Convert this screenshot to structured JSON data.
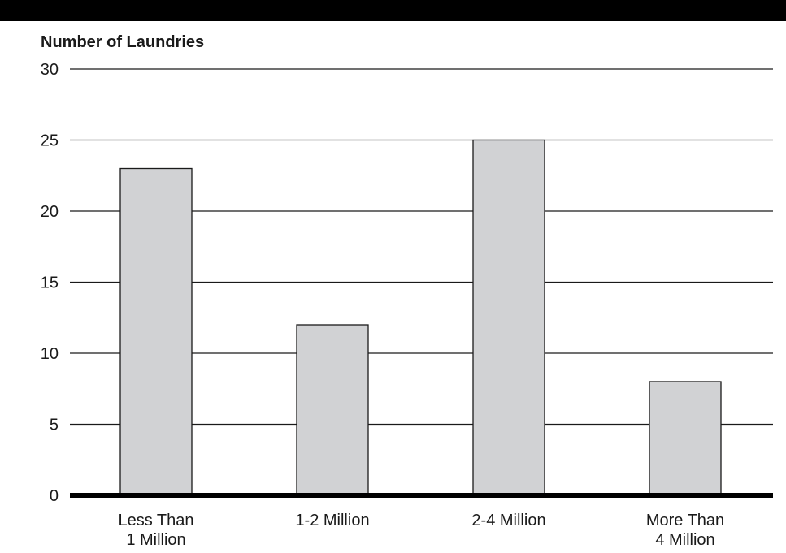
{
  "chart_data": {
    "type": "bar",
    "title": "",
    "ylabel": "Number of Laundries",
    "xlabel": "",
    "categories": [
      [
        "Less Than",
        "1 Million"
      ],
      [
        "1-2 Million"
      ],
      [
        "2-4 Million"
      ],
      [
        "More Than",
        "4 Million"
      ]
    ],
    "values": [
      23,
      12,
      25,
      8
    ],
    "ylim": [
      0,
      30
    ],
    "yticks": [
      0,
      5,
      10,
      15,
      20,
      25,
      30
    ],
    "grid": true,
    "legend": "none",
    "colors": {
      "bar_fill": "#d1d2d4",
      "bar_stroke": "#1a1a1a",
      "grid": "#1a1a1a",
      "baseline": "#000000",
      "top_band": "#000000"
    }
  }
}
